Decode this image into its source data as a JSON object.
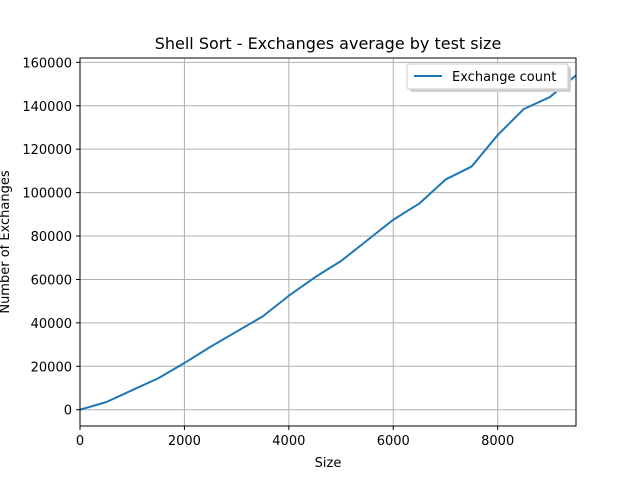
{
  "chart_data": {
    "type": "line",
    "title": "Shell Sort - Exchanges average by test size",
    "xlabel": "Size",
    "ylabel": "Number of Exchanges",
    "xlim": [
      0,
      9500
    ],
    "ylim": [
      -7500,
      162000
    ],
    "xticks": [
      0,
      2000,
      4000,
      6000,
      8000
    ],
    "yticks": [
      0,
      20000,
      40000,
      60000,
      80000,
      100000,
      120000,
      140000,
      160000
    ],
    "grid": true,
    "legend_position": "top-right",
    "series": [
      {
        "name": "Exchange count",
        "color": "#1f77b4",
        "x": [
          0,
          500,
          1000,
          1500,
          2000,
          2500,
          3000,
          3500,
          4000,
          4500,
          5000,
          5500,
          6000,
          6500,
          7000,
          7500,
          8000,
          8500,
          9000,
          9500
        ],
        "y": [
          0,
          3500,
          9000,
          14500,
          21500,
          29000,
          36000,
          43000,
          52500,
          61000,
          68500,
          78000,
          87500,
          95000,
          106000,
          112000,
          126500,
          138500,
          144000,
          154000
        ]
      }
    ]
  }
}
